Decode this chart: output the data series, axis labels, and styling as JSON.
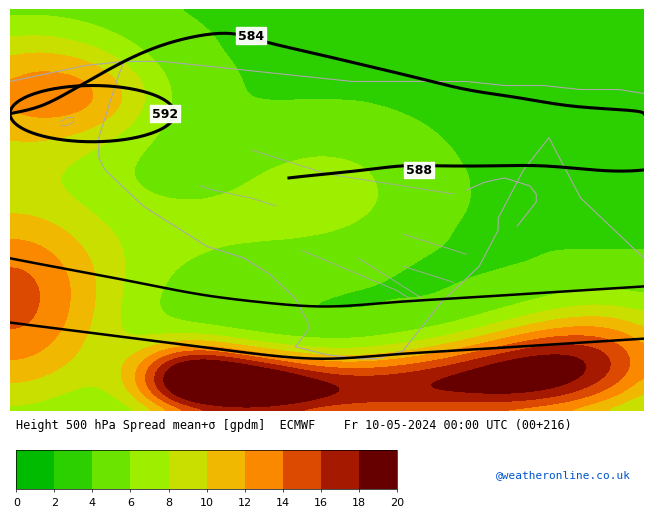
{
  "title_line": "Height 500 hPa Spread mean+σ [gpdm]  ECMWF    Fr 10-05-2024 00:00 UTC (00+216)",
  "colorbar_values": [
    0,
    2,
    4,
    6,
    8,
    10,
    12,
    14,
    16,
    18,
    20
  ],
  "colorbar_colors": [
    "#00bb00",
    "#22cc00",
    "#55dd00",
    "#88ee00",
    "#aaee00",
    "#ccdd00",
    "#eebb00",
    "#ff9900",
    "#ee6600",
    "#cc3300",
    "#991100",
    "#660000"
  ],
  "watermark": "@weatheronline.co.uk",
  "watermark_color": "#0055cc",
  "fig_width": 6.34,
  "fig_height": 4.9,
  "title_fontsize": 8.5,
  "colorbar_label_fontsize": 8
}
